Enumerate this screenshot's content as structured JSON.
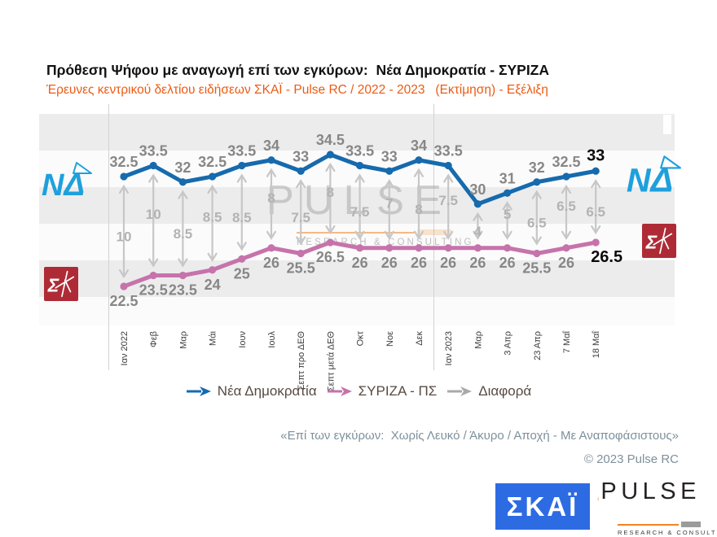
{
  "title": "Πρόθεση Ψήφου με αναγωγή επί των εγκύρων:  Νέα Δημοκρατία - ΣΥΡΙΖΑ",
  "subtitle": "Έρευνες κεντρικού δελτίου ειδήσεων ΣΚΑΪ - Pulse RC / 2022 - 2023   (Εκτίμηση) - Εξέλιξη",
  "chart_data": {
    "type": "line",
    "categories": [
      "Ιαν 2022",
      "Φεβ",
      "Μαρ",
      "Μάι",
      "Ιουν",
      "Ιουλ",
      "Σεπτ προ ΔΕΘ",
      "Σεπτ μετά ΔΕΘ",
      "Οκτ",
      "Νοε",
      "Δεκ",
      "Ιαν 2023",
      "Μαρ",
      "3 Απρ",
      "23 Απρ",
      "7 Μαΐ",
      "18 Μαΐ"
    ],
    "series": [
      {
        "name": "Νέα Δημοκρατία",
        "color": "#166AAD",
        "values": [
          32.5,
          33.5,
          32,
          32.5,
          33.5,
          34,
          33,
          34.5,
          33.5,
          33,
          34,
          33.5,
          30,
          31,
          32,
          32.5,
          33
        ]
      },
      {
        "name": "ΣΥΡΙΖΑ - ΠΣ",
        "color": "#C673AC",
        "values": [
          22.5,
          23.5,
          23.5,
          24,
          25,
          26,
          25.5,
          26.5,
          26,
          26,
          26,
          26,
          26,
          26,
          25.5,
          26,
          26.5
        ]
      },
      {
        "name": "Διαφορά",
        "color": "#A9A9A9",
        "values": [
          10,
          10,
          8.5,
          8.5,
          8.5,
          8,
          7.5,
          8,
          7.5,
          7,
          8,
          7.5,
          4,
          5,
          6.5,
          6.5,
          6.5
        ]
      }
    ],
    "ylim": [
      19,
      39
    ],
    "grid": "horizontal-bands",
    "legend_position": "bottom",
    "year_gridlines": [
      "Ιαν 2022",
      "Ιαν 2023"
    ],
    "last_point_emphasis": {
      "Νέα Δημοκρατία": 33,
      "ΣΥΡΙΖΑ - ΠΣ": 26.5
    }
  },
  "footnote": "«Επί των εγκύρων:  Χωρίς Λευκό / Άκυρο / Αποχή - Με Αναποφάσιστους»",
  "copyright": "© 2023 Pulse RC",
  "party_logos": {
    "nd_text": "ΝΔ",
    "syriza_text": "Σ"
  },
  "brand": {
    "skai": "ΣΚΑΪ",
    "pulse": "PULSE",
    "pulse_sub": "RESEARCH & CONSULTING"
  },
  "colors": {
    "subtitle_orange": "#EB5B13",
    "nd_blue": "#166AAD",
    "syriza_pink": "#C673AC",
    "diff_arrow_gray": "#c7c7c7",
    "value_label_gray": "#878787",
    "diff_label_gray": "#b3b3b3",
    "emphasis_black": "#0a0a0a",
    "stripe_gray": "#ececec",
    "nd_logo_blue": "#1FA0DC",
    "syriza_red": "#AE2B36",
    "skai_blue": "#2D6BE3",
    "pulse_orange": "#F5821F",
    "note_slate": "#7E909B",
    "legend_text": "#584A42"
  }
}
